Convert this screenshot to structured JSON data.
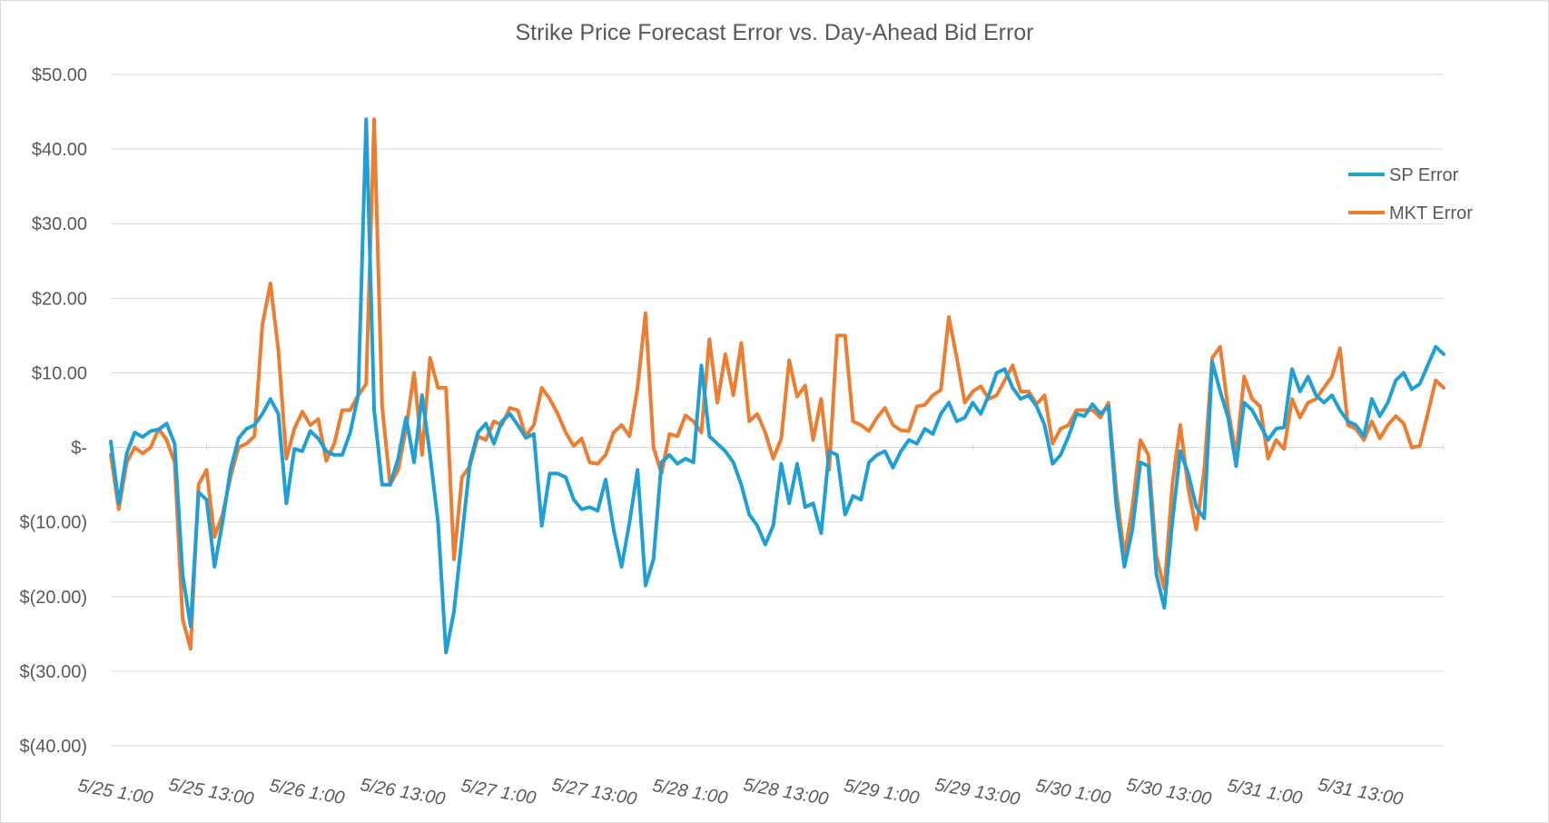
{
  "chart_data": {
    "type": "line",
    "title": "Strike Price Forecast Error vs. Day-Ahead Bid Error",
    "xlabel": "",
    "ylabel": "",
    "ylim": [
      -40,
      50
    ],
    "y_tick_values": [
      50,
      40,
      30,
      20,
      10,
      0,
      -10,
      -20,
      -30,
      -40
    ],
    "y_tick_labels": [
      "$50.00",
      "$40.00",
      "$30.00",
      "$20.00",
      "$10.00",
      "$-",
      "$(10.00)",
      "$(20.00)",
      "$(30.00)",
      "$(40.00)"
    ],
    "x_tick_labels": [
      "5/25 1:00",
      "5/25 13:00",
      "5/26 1:00",
      "5/26 13:00",
      "5/27 1:00",
      "5/27 13:00",
      "5/28 1:00",
      "5/28 13:00",
      "5/29 1:00",
      "5/29 13:00",
      "5/30 1:00",
      "5/30 13:00",
      "5/31 1:00",
      "5/31 13:00"
    ],
    "grid": true,
    "legend_position": "right",
    "series": [
      {
        "name": "SP Error",
        "color": "#1ea0d7",
        "values": [
          0.8,
          -7.5,
          -0.8,
          2.0,
          1.4,
          2.2,
          2.4,
          3.2,
          0.5,
          -17.0,
          -24.0,
          -6.0,
          -7.0,
          -16.0,
          -10.0,
          -3.0,
          1.2,
          2.5,
          3.0,
          4.5,
          6.5,
          4.5,
          -7.5,
          -0.2,
          -0.5,
          2.2,
          1.2,
          -0.5,
          -1.0,
          -1.0,
          2.0,
          7.0,
          44.0,
          5.0,
          -5.0,
          -5.0,
          -1.5,
          4.0,
          -2.0,
          7.0,
          -1.0,
          -10.0,
          -27.5,
          -22.0,
          -12.0,
          -2.0,
          2.0,
          3.2,
          0.5,
          3.5,
          4.5,
          3.0,
          1.3,
          1.8,
          -10.5,
          -3.5,
          -3.5,
          -4.0,
          -7.0,
          -8.3,
          -8.0,
          -8.5,
          -4.3,
          -11.0,
          -16.0,
          -10.0,
          -3.0,
          -18.5,
          -15.0,
          -2.0,
          -1.0,
          -2.2,
          -1.5,
          -2.0,
          11.0,
          1.5,
          0.5,
          -0.5,
          -2.0,
          -5.0,
          -9.0,
          -10.5,
          -13.0,
          -10.5,
          -2.2,
          -7.5,
          -2.2,
          -8.0,
          -7.5,
          -11.5,
          -0.5,
          -1.0,
          -9.0,
          -6.5,
          -7.0,
          -2.0,
          -1.0,
          -0.5,
          -2.7,
          -0.5,
          1.0,
          0.5,
          2.5,
          1.8,
          4.5,
          6.0,
          3.5,
          4.0,
          6.0,
          4.5,
          7.0,
          10.0,
          10.5,
          8.0,
          6.5,
          7.0,
          5.5,
          3.0,
          -2.2,
          -1.0,
          1.5,
          4.5,
          4.2,
          5.8,
          4.5,
          5.5,
          -8.0,
          -16.0,
          -11.0,
          -2.0,
          -2.5,
          -17.0,
          -21.5,
          -10.0,
          -0.5,
          -3.5,
          -8.0,
          -9.5,
          11.5,
          7.5,
          4.0,
          -2.5,
          6.0,
          5.0,
          3.0,
          1.0,
          2.5,
          2.7,
          10.5,
          7.5,
          9.5,
          7.0,
          6.0,
          7.0,
          5.0,
          3.5,
          3.0,
          1.5,
          6.5,
          4.2,
          6.0,
          9.0,
          10.0,
          7.8,
          8.5,
          11.0,
          13.5,
          12.5
        ]
      },
      {
        "name": "MKT Error",
        "color": "#ed7d31",
        "values": [
          -1.0,
          -8.3,
          -2.0,
          0.0,
          -0.8,
          0.0,
          2.5,
          1.0,
          -2.0,
          -23.0,
          -27.0,
          -5.0,
          -3.0,
          -12.0,
          -9.0,
          -4.0,
          0.0,
          0.5,
          1.5,
          16.5,
          22.0,
          13.0,
          -1.5,
          2.5,
          4.8,
          3.0,
          3.8,
          -1.8,
          0.5,
          5.0,
          5.0,
          7.0,
          8.5,
          44.0,
          5.5,
          -5.0,
          -3.0,
          2.5,
          10.0,
          -1.0,
          12.0,
          8.0,
          8.0,
          -15.0,
          -4.0,
          -2.5,
          1.5,
          1.0,
          3.5,
          3.0,
          5.3,
          5.0,
          1.5,
          3.0,
          8.0,
          6.5,
          4.5,
          2.0,
          0.2,
          1.2,
          -2.0,
          -2.2,
          -1.0,
          2.0,
          3.0,
          1.5,
          8.0,
          18.0,
          0.0,
          -3.5,
          1.8,
          1.5,
          4.3,
          3.5,
          2.0,
          14.5,
          6.0,
          12.5,
          7.0,
          14.0,
          3.5,
          4.5,
          2.0,
          -1.5,
          1.2,
          11.7,
          6.8,
          8.3,
          1.0,
          6.5,
          -3.0,
          15.0,
          15.0,
          3.5,
          3.0,
          2.2,
          4.0,
          5.3,
          3.0,
          2.3,
          2.2,
          5.5,
          5.7,
          7.0,
          7.7,
          17.5,
          12.0,
          6.0,
          7.5,
          8.2,
          6.5,
          7.0,
          9.0,
          11.0,
          7.5,
          7.5,
          5.8,
          7.0,
          0.5,
          2.5,
          3.0,
          5.0,
          5.0,
          5.0,
          4.0,
          6.0,
          -6.0,
          -14.5,
          -8.0,
          1.0,
          -1.0,
          -14.5,
          -19.0,
          -5.0,
          3.0,
          -5.5,
          -11.0,
          -3.0,
          12.0,
          13.5,
          5.0,
          -1.0,
          9.5,
          6.5,
          5.5,
          -1.5,
          1.0,
          -0.2,
          6.5,
          4.0,
          6.0,
          6.5,
          8.0,
          9.5,
          13.3,
          3.0,
          2.5,
          1.0,
          3.5,
          1.2,
          3.0,
          4.2,
          3.2,
          0.0,
          0.2,
          4.5,
          9.0,
          8.0
        ]
      }
    ]
  }
}
